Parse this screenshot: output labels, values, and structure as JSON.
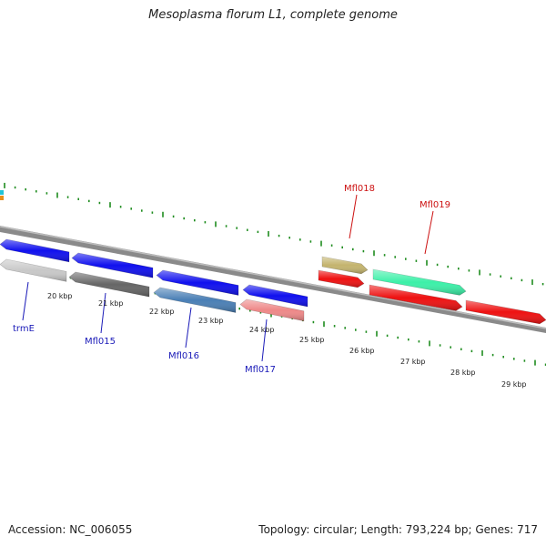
{
  "title": "Mesoplasma florum L1, complete genome",
  "footer": {
    "accession": "Accession: NC_006055",
    "summary": "Topology: circular; Length: 793,224 bp; Genes: 717"
  },
  "colors": {
    "backbone": "#8a8a8a",
    "tick": "#1e8c1e",
    "label_blue": "#1a1ab8",
    "label_red": "#cc1111",
    "text": "#222222"
  },
  "scale_labels": [
    "20 kbp",
    "21 kbp",
    "22 kbp",
    "23 kbp",
    "24 kbp",
    "25 kbp",
    "26 kbp",
    "27 kbp",
    "28 kbp",
    "29 kbp"
  ],
  "genes": [
    {
      "label": "",
      "color": "#1010ee",
      "strand": "reverse",
      "row": "top"
    },
    {
      "label": "trmE",
      "color": "#c8c8c8",
      "strand": "reverse",
      "row": "bottom"
    },
    {
      "label": "",
      "color": "#1010ee",
      "strand": "reverse",
      "row": "top"
    },
    {
      "label": "Mfl015",
      "color": "#666666",
      "strand": "reverse",
      "row": "bottom"
    },
    {
      "label": "",
      "color": "#1010ee",
      "strand": "reverse",
      "row": "top"
    },
    {
      "label": "Mfl016",
      "color": "#4a7fb5",
      "strand": "reverse",
      "row": "bottom"
    },
    {
      "label": "",
      "color": "#1010ee",
      "strand": "reverse",
      "row": "top"
    },
    {
      "label": "Mfl017",
      "color": "#ee8888",
      "strand": "reverse",
      "row": "bottom"
    },
    {
      "label": "Mfl018",
      "color": "#c4b46e",
      "strand": "forward",
      "row": "top"
    },
    {
      "label": "",
      "color": "#ee1111",
      "strand": "forward",
      "row": "mid"
    },
    {
      "label": "Mfl019",
      "color": "#3cf0a8",
      "strand": "forward",
      "row": "top"
    },
    {
      "label": "",
      "color": "#ee1111",
      "strand": "forward",
      "row": "mid"
    },
    {
      "label": "",
      "color": "#ee1111",
      "strand": "forward",
      "row": "mid"
    }
  ]
}
